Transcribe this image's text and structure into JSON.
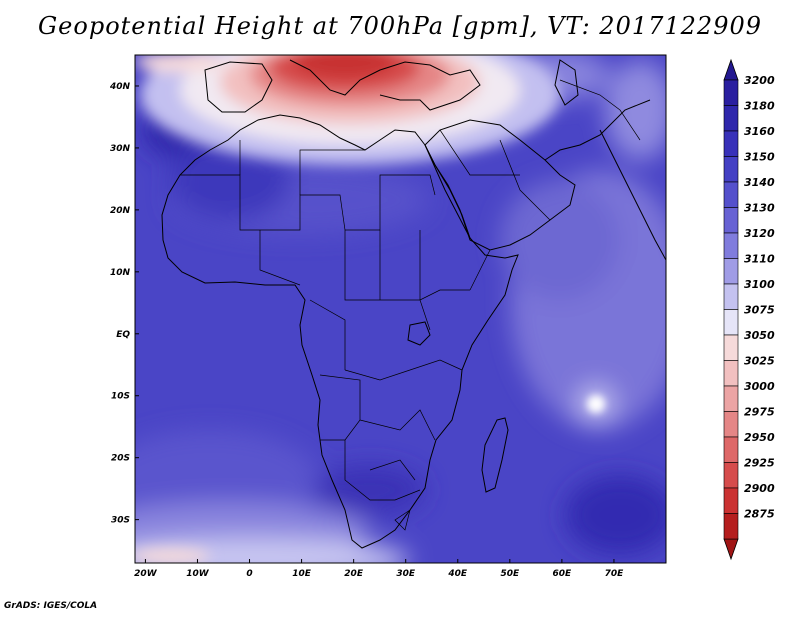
{
  "title": "Geopotential Height at 700hPa [gpm], VT: 2017122909",
  "credit": "GrADS: IGES/COLA",
  "map": {
    "lon_range": [
      -22,
      80
    ],
    "lat_range": [
      -37,
      45
    ],
    "lon_ticks": [
      {
        "value": -20,
        "label": "20W"
      },
      {
        "value": -10,
        "label": "10W"
      },
      {
        "value": 0,
        "label": "0"
      },
      {
        "value": 10,
        "label": "10E"
      },
      {
        "value": 20,
        "label": "20E"
      },
      {
        "value": 30,
        "label": "30E"
      },
      {
        "value": 40,
        "label": "40E"
      },
      {
        "value": 50,
        "label": "50E"
      },
      {
        "value": 60,
        "label": "60E"
      },
      {
        "value": 70,
        "label": "70E"
      }
    ],
    "lat_ticks": [
      {
        "value": 40,
        "label": "40N"
      },
      {
        "value": 30,
        "label": "30N"
      },
      {
        "value": 20,
        "label": "20N"
      },
      {
        "value": 10,
        "label": "10N"
      },
      {
        "value": 0,
        "label": "EQ"
      },
      {
        "value": -10,
        "label": "10S"
      },
      {
        "value": -20,
        "label": "20S"
      },
      {
        "value": -30,
        "label": "30S"
      }
    ]
  },
  "colorbar": {
    "levels": [
      {
        "label": "3200",
        "color": "#2a1fa0"
      },
      {
        "label": "3180",
        "color": "#2f27ac"
      },
      {
        "label": "3160",
        "color": "#3831b9"
      },
      {
        "label": "3150",
        "color": "#4440c4"
      },
      {
        "label": "3140",
        "color": "#5450cc"
      },
      {
        "label": "3130",
        "color": "#6762d4"
      },
      {
        "label": "3120",
        "color": "#807cdd"
      },
      {
        "label": "3110",
        "color": "#a09ce6"
      },
      {
        "label": "3100",
        "color": "#c4c2f0"
      },
      {
        "label": "3075",
        "color": "#e6e5f8"
      },
      {
        "label": "3050",
        "color": "#f6dada"
      },
      {
        "label": "3025",
        "color": "#f2c0c0"
      },
      {
        "label": "3000",
        "color": "#eca4a4"
      },
      {
        "label": "2975",
        "color": "#e58686"
      },
      {
        "label": "2950",
        "color": "#de6868"
      },
      {
        "label": "2925",
        "color": "#d64c4c"
      },
      {
        "label": "2900",
        "color": "#cb3232"
      },
      {
        "label": "2875",
        "color": "#b51e1e"
      }
    ],
    "top_arrow_color": "#231890",
    "bottom_arrow_color": "#a01515"
  }
}
